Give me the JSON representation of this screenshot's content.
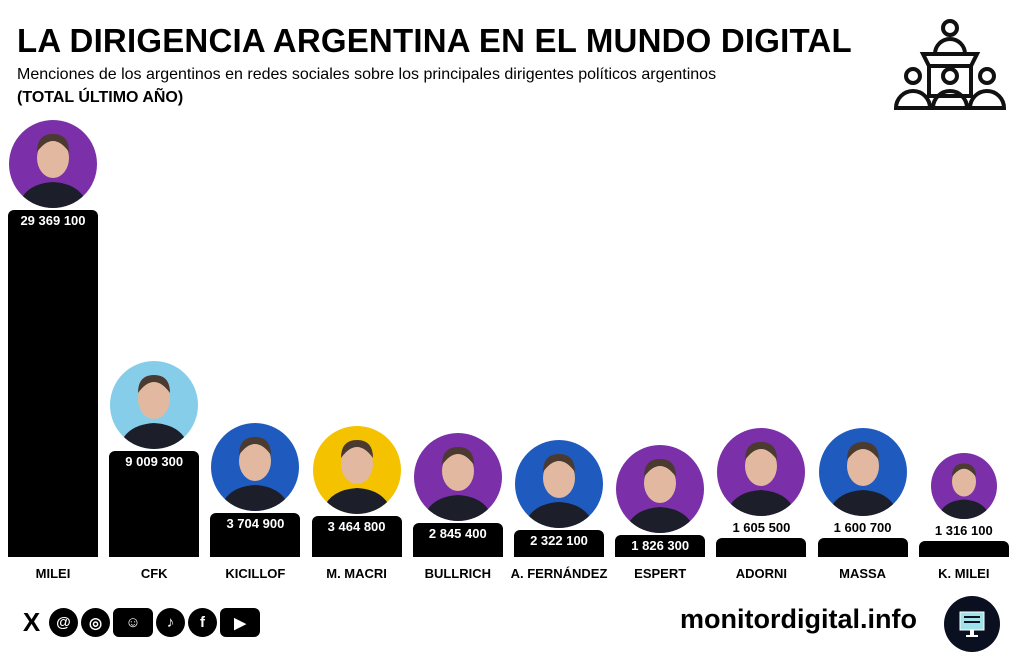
{
  "header": {
    "title": "LA DIRIGENCIA ARGENTINA EN EL MUNDO DIGITAL",
    "subtitle": "Menciones de los argentinos en redes sociales sobre los principales dirigentes políticos argentinos",
    "note": "(TOTAL ÚLTIMO AÑO)"
  },
  "chart_data": {
    "type": "bar",
    "title": "LA DIRIGENCIA ARGENTINA EN EL MUNDO DIGITAL",
    "categories": [
      "MILEI",
      "CFK",
      "KICILLOF",
      "M. MACRI",
      "BULLRICH",
      "A. FERNÁNDEZ",
      "ESPERT",
      "ADORNI",
      "MASSA",
      "K. MILEI"
    ],
    "values": [
      29369100,
      9009300,
      3704900,
      3464800,
      2845400,
      2322100,
      1826300,
      1605500,
      1600700,
      1316100
    ],
    "value_labels": [
      "29 369 100",
      "9 009 300",
      "3 704 900",
      "3 464 800",
      "2 845 400",
      "2 322 100",
      "1 826 300",
      "1 605 500",
      "1 600 700",
      "1 316 100"
    ],
    "photo_colors": [
      "#7b2fa8",
      "#86cdea",
      "#1f5bbf",
      "#f5c200",
      "#7b2fa8",
      "#1f5bbf",
      "#7b2fa8",
      "#7b2fa8",
      "#1f5bbf",
      "#7b2fa8"
    ],
    "bar_color": "#000000",
    "xlabel": "",
    "ylabel": ""
  },
  "footer": {
    "site": "monitordigital.info",
    "social_icons": [
      "x-icon",
      "threads-icon",
      "instagram-icon",
      "reddit-icon",
      "tiktok-icon",
      "facebook-icon",
      "youtube-icon"
    ],
    "social_glyphs": [
      "X",
      "@",
      "◎",
      "☺",
      "♪",
      "f",
      "▶"
    ]
  }
}
